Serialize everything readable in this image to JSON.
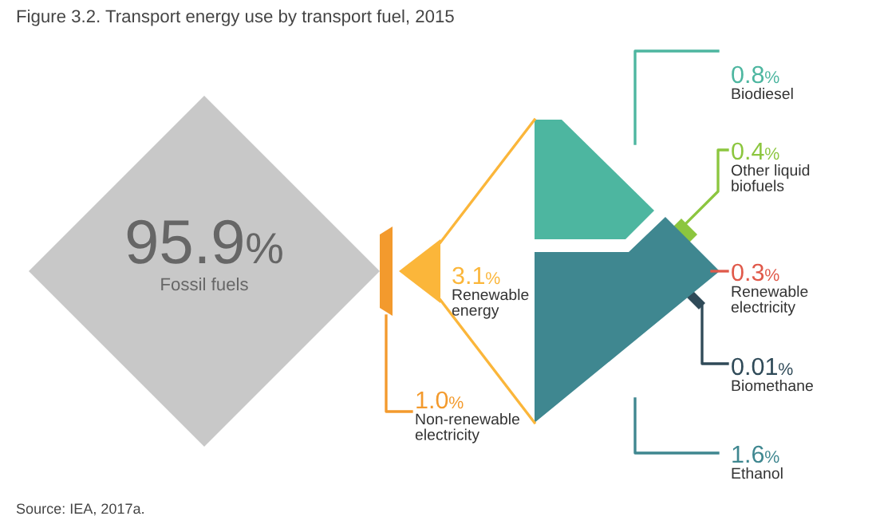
{
  "chart_data": {
    "type": "other",
    "title": "Figure 3.2. Transport energy use by transport fuel, 2015",
    "categories": [
      "Fossil fuels",
      "Renewable energy",
      "Non-renewable electricity",
      "Biodiesel",
      "Other liquid biofuels",
      "Renewable electricity",
      "Biomethane",
      "Ethanol"
    ],
    "values": [
      95.9,
      3.1,
      1.0,
      0.8,
      0.4,
      0.3,
      0.01,
      1.6
    ],
    "value_labels": [
      "95.9%",
      "3.1%",
      "1.0%",
      "0.8%",
      "0.4%",
      "0.3%",
      "0.01%",
      "1.6%"
    ],
    "colors": [
      "#c8c8c8",
      "#fbb63a",
      "#f39a2d",
      "#4db6a0",
      "#8cc63f",
      "#e0594a",
      "#2f4a58",
      "#3f8790"
    ],
    "annotations": [
      "Source: IEA, 2017a."
    ]
  }
}
